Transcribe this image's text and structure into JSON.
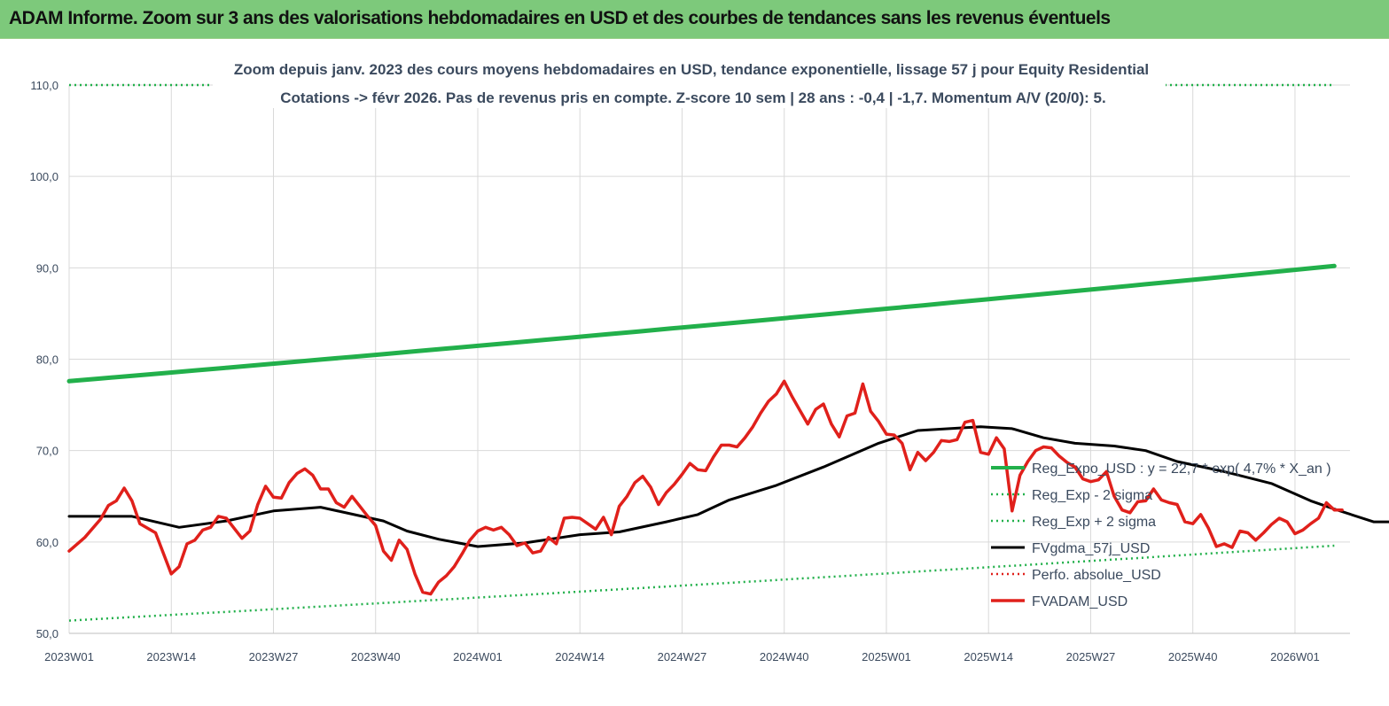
{
  "banner": {
    "title": "ADAM Informe. Zoom sur 3 ans des valorisations hebdomadaires en USD et des courbes de tendances sans les revenus éventuels",
    "background": "#7dc97b"
  },
  "chart_data": {
    "type": "line",
    "title_line1": "Zoom depuis janv. 2023 des cours moyens hebdomadaires en USD, tendance exponentielle, lissage 57 j pour Equity Residential",
    "title_line2": "Cotations -> févr 2026.  Pas de revenus pris en compte. Z-score 10 sem  |  28 ans : -0,4  |  -1,7. Momentum A/V (20/0): 5.",
    "x_tick_labels": [
      "2023W01",
      "2023W14",
      "2023W27",
      "2023W40",
      "2024W01",
      "2024W14",
      "2024W27",
      "2024W40",
      "2025W01",
      "2025W14",
      "2025W27",
      "2025W40",
      "2026W01"
    ],
    "x_range_weeks": [
      0,
      161
    ],
    "ylim": [
      50,
      110
    ],
    "y_ticks": [
      "50,0",
      "60,0",
      "70,0",
      "80,0",
      "90,0",
      "100,0",
      "110,0"
    ],
    "y_tick_values": [
      50,
      60,
      70,
      80,
      90,
      100,
      110
    ],
    "grid": true,
    "legend_position": "right",
    "series": [
      {
        "name": "Reg_Expo_USD : y = 22,7 * exp( 4,7% *  X_an )",
        "color": "#22b04b",
        "style": "thick",
        "x_start": 0,
        "x_end": 161,
        "y_start": 77.6,
        "y_end": 90.2
      },
      {
        "name": "Reg_Exp - 2 sigma",
        "color": "#22b04b",
        "style": "dotted",
        "x_start": 0,
        "x_end": 161,
        "y_start": 51.4,
        "y_end": 59.6
      },
      {
        "name": "Reg_Exp + 2 sigma",
        "color": "#22b04b",
        "style": "dotted",
        "x_start": 0,
        "x_end": 161,
        "y_start": 110,
        "y_end": 110
      },
      {
        "name": "FVgdma_57j_USD",
        "color": "#000000",
        "style": "solid",
        "points": [
          [
            0,
            62.8
          ],
          [
            8,
            62.8
          ],
          [
            12,
            62.0
          ],
          [
            14,
            61.6
          ],
          [
            20,
            62.3
          ],
          [
            26,
            63.4
          ],
          [
            32,
            63.8
          ],
          [
            40,
            62.3
          ],
          [
            43,
            61.2
          ],
          [
            47,
            60.3
          ],
          [
            52,
            59.5
          ],
          [
            58,
            59.9
          ],
          [
            65,
            60.8
          ],
          [
            70,
            61.1
          ],
          [
            76,
            62.2
          ],
          [
            80,
            63.0
          ],
          [
            84,
            64.6
          ],
          [
            90,
            66.2
          ],
          [
            96,
            68.2
          ],
          [
            103,
            70.8
          ],
          [
            108,
            72.2
          ],
          [
            112,
            72.4
          ],
          [
            116,
            72.6
          ],
          [
            120,
            72.4
          ],
          [
            124,
            71.4
          ],
          [
            128,
            70.8
          ],
          [
            133,
            70.5
          ],
          [
            137,
            70.0
          ],
          [
            141,
            68.8
          ],
          [
            147,
            67.7
          ],
          [
            153,
            66.4
          ],
          [
            158,
            64.5
          ],
          [
            161,
            63.6
          ],
          [
            166,
            62.2
          ],
          [
            172,
            62.2
          ],
          [
            176,
            62.5
          ],
          [
            179,
            63.0
          ],
          [
            183,
            62.9
          ]
        ]
      },
      {
        "name": "Perfo. absolue_USD",
        "color": "#e0201b",
        "style": "dotted",
        "points": []
      },
      {
        "name": "FVADAM_USD",
        "color": "#e0201b",
        "style": "thick-solid",
        "points": [
          [
            0,
            59.0
          ],
          [
            2,
            60.5
          ],
          [
            4,
            62.5
          ],
          [
            5,
            64.0
          ],
          [
            6,
            64.5
          ],
          [
            7,
            65.9
          ],
          [
            8,
            64.5
          ],
          [
            9,
            62.0
          ],
          [
            11,
            61.0
          ],
          [
            13,
            56.5
          ],
          [
            14,
            57.3
          ],
          [
            15,
            59.8
          ],
          [
            16,
            60.2
          ],
          [
            17,
            61.3
          ],
          [
            18,
            61.6
          ],
          [
            19,
            62.8
          ],
          [
            20,
            62.6
          ],
          [
            21,
            61.5
          ],
          [
            22,
            60.4
          ],
          [
            23,
            61.2
          ],
          [
            24,
            64.1
          ],
          [
            25,
            66.1
          ],
          [
            26,
            64.9
          ],
          [
            27,
            64.8
          ],
          [
            28,
            66.5
          ],
          [
            29,
            67.5
          ],
          [
            30,
            68.0
          ],
          [
            31,
            67.3
          ],
          [
            32,
            65.8
          ],
          [
            33,
            65.8
          ],
          [
            34,
            64.3
          ],
          [
            35,
            63.8
          ],
          [
            36,
            65.0
          ],
          [
            37,
            63.9
          ],
          [
            38,
            62.8
          ],
          [
            39,
            61.8
          ],
          [
            40,
            59.0
          ],
          [
            41,
            58.0
          ],
          [
            42,
            60.2
          ],
          [
            43,
            59.2
          ],
          [
            44,
            56.5
          ],
          [
            45,
            54.5
          ],
          [
            46,
            54.3
          ],
          [
            47,
            55.6
          ],
          [
            48,
            56.3
          ],
          [
            49,
            57.3
          ],
          [
            50,
            58.7
          ],
          [
            51,
            60.2
          ],
          [
            52,
            61.2
          ],
          [
            53,
            61.6
          ],
          [
            54,
            61.3
          ],
          [
            55,
            61.6
          ],
          [
            56,
            60.8
          ],
          [
            57,
            59.6
          ],
          [
            58,
            59.9
          ],
          [
            59,
            58.8
          ],
          [
            60,
            59.0
          ],
          [
            61,
            60.5
          ],
          [
            62,
            59.8
          ],
          [
            63,
            62.6
          ],
          [
            64,
            62.7
          ],
          [
            65,
            62.6
          ],
          [
            66,
            62.0
          ],
          [
            67,
            61.4
          ],
          [
            68,
            62.7
          ],
          [
            69,
            60.8
          ],
          [
            70,
            63.9
          ],
          [
            71,
            65.0
          ],
          [
            72,
            66.5
          ],
          [
            73,
            67.2
          ],
          [
            74,
            66.0
          ],
          [
            75,
            64.1
          ],
          [
            76,
            65.4
          ],
          [
            77,
            66.3
          ],
          [
            78,
            67.4
          ],
          [
            79,
            68.6
          ],
          [
            80,
            67.9
          ],
          [
            81,
            67.8
          ],
          [
            82,
            69.3
          ],
          [
            83,
            70.6
          ],
          [
            84,
            70.6
          ],
          [
            85,
            70.4
          ],
          [
            86,
            71.4
          ],
          [
            87,
            72.6
          ],
          [
            88,
            74.1
          ],
          [
            89,
            75.4
          ],
          [
            90,
            76.2
          ],
          [
            91,
            77.6
          ],
          [
            92,
            75.9
          ],
          [
            93,
            74.4
          ],
          [
            94,
            72.9
          ],
          [
            95,
            74.5
          ],
          [
            96,
            75.1
          ],
          [
            97,
            72.9
          ],
          [
            98,
            71.5
          ],
          [
            99,
            73.8
          ],
          [
            100,
            74.1
          ],
          [
            101,
            77.3
          ],
          [
            102,
            74.3
          ],
          [
            103,
            73.2
          ],
          [
            104,
            71.8
          ],
          [
            105,
            71.7
          ],
          [
            106,
            70.8
          ],
          [
            107,
            67.9
          ],
          [
            108,
            69.8
          ],
          [
            109,
            68.9
          ],
          [
            110,
            69.8
          ],
          [
            111,
            71.1
          ],
          [
            112,
            71.0
          ],
          [
            113,
            71.2
          ],
          [
            114,
            73.1
          ],
          [
            115,
            73.3
          ],
          [
            116,
            69.8
          ],
          [
            117,
            69.6
          ],
          [
            118,
            71.4
          ],
          [
            119,
            70.2
          ],
          [
            120,
            63.4
          ],
          [
            121,
            67.3
          ],
          [
            122,
            68.8
          ],
          [
            123,
            70.0
          ],
          [
            124,
            70.4
          ],
          [
            125,
            70.3
          ],
          [
            126,
            69.4
          ],
          [
            127,
            68.7
          ],
          [
            128,
            68.2
          ],
          [
            129,
            66.9
          ],
          [
            130,
            66.6
          ],
          [
            131,
            66.8
          ],
          [
            132,
            67.7
          ],
          [
            133,
            65.0
          ],
          [
            134,
            63.5
          ],
          [
            135,
            63.2
          ],
          [
            136,
            64.4
          ],
          [
            137,
            64.5
          ],
          [
            138,
            65.8
          ],
          [
            139,
            64.6
          ],
          [
            140,
            64.3
          ],
          [
            141,
            64.1
          ],
          [
            142,
            62.2
          ],
          [
            143,
            62.0
          ],
          [
            144,
            63.0
          ],
          [
            145,
            61.5
          ],
          [
            146,
            59.5
          ],
          [
            147,
            59.8
          ],
          [
            148,
            59.4
          ],
          [
            149,
            61.2
          ],
          [
            150,
            61.0
          ],
          [
            151,
            60.2
          ],
          [
            152,
            61.0
          ],
          [
            153,
            61.9
          ],
          [
            154,
            62.6
          ],
          [
            155,
            62.2
          ],
          [
            156,
            60.9
          ],
          [
            157,
            61.3
          ],
          [
            158,
            62.0
          ],
          [
            159,
            62.6
          ],
          [
            160,
            64.3
          ],
          [
            161,
            63.5
          ],
          [
            162,
            63.5
          ]
        ]
      }
    ]
  }
}
